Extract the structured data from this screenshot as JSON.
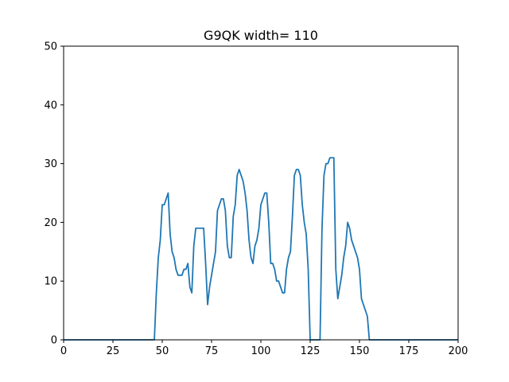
{
  "chart_data": {
    "type": "line",
    "title": "G9QK width= 110",
    "xlabel": "",
    "ylabel": "",
    "xlim": [
      0,
      200
    ],
    "ylim": [
      0,
      50
    ],
    "xticks": [
      0,
      25,
      50,
      75,
      100,
      125,
      150,
      175,
      200
    ],
    "yticks": [
      0,
      10,
      20,
      30,
      40,
      50
    ],
    "xtick_labels": [
      "0",
      "25",
      "50",
      "75",
      "100",
      "125",
      "150",
      "175",
      "200"
    ],
    "ytick_labels": [
      "0",
      "10",
      "20",
      "30",
      "40",
      "50"
    ],
    "grid": false,
    "legend": "none",
    "series": [
      {
        "color": "#1f77b4",
        "x": [
          0,
          46,
          47,
          48,
          49,
          50,
          51,
          52,
          53,
          54,
          55,
          56,
          57,
          58,
          59,
          60,
          61,
          62,
          63,
          64,
          65,
          66,
          67,
          68,
          69,
          70,
          71,
          72,
          73,
          74,
          75,
          76,
          77,
          78,
          79,
          80,
          81,
          82,
          83,
          84,
          85,
          86,
          87,
          88,
          89,
          90,
          91,
          92,
          93,
          94,
          95,
          96,
          97,
          98,
          99,
          100,
          101,
          102,
          103,
          104,
          105,
          106,
          107,
          108,
          109,
          110,
          111,
          112,
          113,
          114,
          115,
          116,
          117,
          118,
          119,
          120,
          121,
          122,
          123,
          124,
          125,
          130,
          131,
          132,
          133,
          134,
          135,
          136,
          137,
          138,
          139,
          140,
          141,
          142,
          143,
          144,
          145,
          146,
          147,
          148,
          149,
          150,
          151,
          152,
          153,
          154,
          155,
          156,
          200
        ],
        "y": [
          0,
          0,
          8,
          14,
          17,
          23,
          23,
          24,
          25,
          18,
          15,
          14,
          12,
          11,
          11,
          11,
          12,
          12,
          13,
          9,
          8,
          16,
          19,
          19,
          19,
          19,
          19,
          13,
          6,
          9,
          11,
          13,
          15,
          22,
          23,
          24,
          24,
          22,
          16,
          14,
          14,
          21,
          23,
          28,
          29,
          28,
          27,
          25,
          22,
          17,
          14,
          13,
          16,
          17,
          19,
          23,
          24,
          25,
          25,
          20,
          13,
          13,
          12,
          10,
          10,
          9,
          8,
          8,
          12,
          14,
          15,
          21,
          28,
          29,
          29,
          28,
          23,
          20,
          18,
          12,
          0,
          0,
          19,
          28,
          30,
          30,
          31,
          31,
          31,
          12,
          7,
          9,
          11,
          14,
          16,
          20,
          19,
          17,
          16,
          15,
          14,
          12,
          7,
          6,
          5,
          4,
          0,
          0,
          0
        ]
      }
    ]
  }
}
